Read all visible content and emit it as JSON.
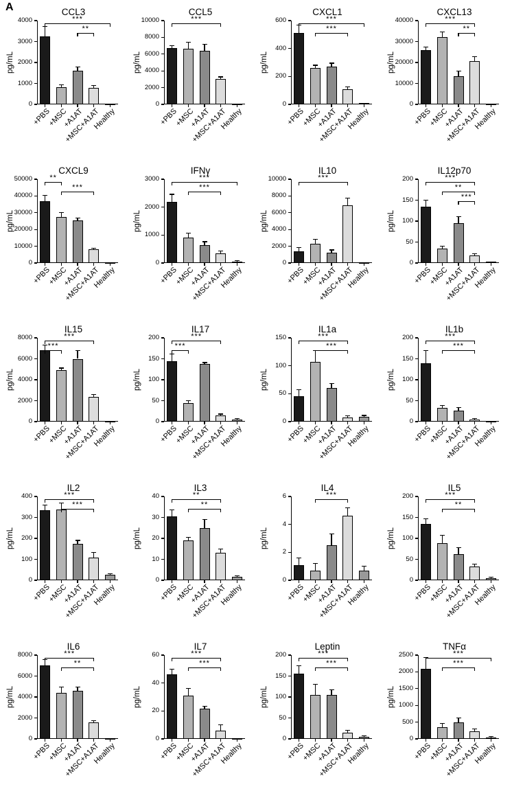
{
  "panel_label": "A",
  "style": {
    "bar_colors": [
      "#1a1a1a",
      "#b3b3b3",
      "#8a8a8a",
      "#dcdcdc",
      "#999999"
    ],
    "axis_color": "#000000"
  },
  "chart_data": {
    "type": "bar",
    "ylabel": "pg/mL",
    "categories": [
      "+PBS",
      "+MSC",
      "+A1AT",
      "+MSC+A1AT",
      "Healthy"
    ],
    "charts": [
      {
        "title": "CCL3",
        "ylim": [
          0,
          4000
        ],
        "yticks": [
          0,
          1000,
          2000,
          3000,
          4000
        ],
        "values": [
          3250,
          820,
          1620,
          790,
          25
        ],
        "errors": [
          480,
          110,
          160,
          110,
          15
        ],
        "significance": [
          {
            "from": 0,
            "to": 4,
            "label": "***",
            "level": 0
          },
          {
            "from": 2,
            "to": 3,
            "label": "**",
            "level": 1
          }
        ]
      },
      {
        "title": "CCL5",
        "ylim": [
          0,
          10000
        ],
        "yticks": [
          0,
          2000,
          4000,
          6000,
          8000,
          10000
        ],
        "values": [
          6700,
          6600,
          6400,
          3000,
          60
        ],
        "errors": [
          280,
          850,
          750,
          280,
          30
        ],
        "significance": [
          {
            "from": 0,
            "to": 3,
            "label": "***",
            "level": 0
          }
        ]
      },
      {
        "title": "CXCL1",
        "ylim": [
          0,
          600
        ],
        "yticks": [
          0,
          200,
          400,
          600
        ],
        "values": [
          510,
          260,
          270,
          110,
          8
        ],
        "errors": [
          60,
          20,
          25,
          15,
          4
        ],
        "significance": [
          {
            "from": 0,
            "to": 4,
            "label": "***",
            "level": 0
          },
          {
            "from": 1,
            "to": 3,
            "label": "***",
            "level": 1
          }
        ]
      },
      {
        "title": "CXCL13",
        "ylim": [
          0,
          40000
        ],
        "yticks": [
          0,
          10000,
          20000,
          30000,
          40000
        ],
        "values": [
          26000,
          32000,
          13500,
          20500,
          400
        ],
        "errors": [
          1500,
          2500,
          2500,
          2200,
          200
        ],
        "significance": [
          {
            "from": 0,
            "to": 3,
            "label": "***",
            "level": 0
          },
          {
            "from": 2,
            "to": 3,
            "label": "**",
            "level": 1
          }
        ]
      },
      {
        "title": "CXCL9",
        "ylim": [
          0,
          50000
        ],
        "yticks": [
          0,
          10000,
          20000,
          30000,
          40000,
          50000
        ],
        "values": [
          37000,
          27500,
          25500,
          8000,
          300
        ],
        "errors": [
          3200,
          2500,
          1500,
          900,
          150
        ],
        "significance": [
          {
            "from": 0,
            "to": 1,
            "label": "**",
            "level": 0
          },
          {
            "from": 1,
            "to": 3,
            "label": "***",
            "level": 1
          }
        ]
      },
      {
        "title": "IFNγ",
        "ylim": [
          0,
          3000
        ],
        "yticks": [
          0,
          1000,
          2000,
          3000
        ],
        "values": [
          2200,
          900,
          650,
          350,
          60
        ],
        "errors": [
          260,
          160,
          110,
          90,
          30
        ],
        "significance": [
          {
            "from": 0,
            "to": 4,
            "label": "***",
            "level": 0
          },
          {
            "from": 1,
            "to": 3,
            "label": "***",
            "level": 1
          }
        ]
      },
      {
        "title": "IL10",
        "ylim": [
          0,
          10000
        ],
        "yticks": [
          0,
          2000,
          4000,
          6000,
          8000,
          10000
        ],
        "values": [
          1400,
          2300,
          1200,
          6900,
          80
        ],
        "errors": [
          450,
          550,
          350,
          850,
          40
        ],
        "significance": [
          {
            "from": 0,
            "to": 3,
            "label": "***",
            "level": 0
          }
        ]
      },
      {
        "title": "IL12p70",
        "ylim": [
          0,
          200
        ],
        "yticks": [
          0,
          50,
          100,
          150,
          200
        ],
        "values": [
          135,
          35,
          95,
          18,
          3
        ],
        "errors": [
          15,
          5,
          15,
          4,
          1
        ],
        "significance": [
          {
            "from": 0,
            "to": 3,
            "label": "***",
            "level": 0
          },
          {
            "from": 1,
            "to": 3,
            "label": "**",
            "level": 1
          },
          {
            "from": 2,
            "to": 3,
            "label": "***",
            "level": 2
          }
        ]
      },
      {
        "title": "IL15",
        "ylim": [
          0,
          8000
        ],
        "yticks": [
          0,
          2000,
          4000,
          6000,
          8000
        ],
        "values": [
          6800,
          4900,
          6000,
          2350,
          60
        ],
        "errors": [
          500,
          220,
          800,
          260,
          30
        ],
        "significance": [
          {
            "from": 0,
            "to": 3,
            "label": "***",
            "level": 0
          },
          {
            "from": 0,
            "to": 1,
            "label": "***",
            "level": 1
          }
        ]
      },
      {
        "title": "IL17",
        "ylim": [
          0,
          200
        ],
        "yticks": [
          0,
          50,
          100,
          150,
          200
        ],
        "values": [
          145,
          45,
          137,
          15,
          5
        ],
        "errors": [
          16,
          5,
          4,
          3,
          2
        ],
        "significance": [
          {
            "from": 0,
            "to": 3,
            "label": "***",
            "level": 0
          },
          {
            "from": 0,
            "to": 1,
            "label": "***",
            "level": 1
          }
        ]
      },
      {
        "title": "IL1a",
        "ylim": [
          0,
          150
        ],
        "yticks": [
          0,
          50,
          100,
          150
        ],
        "values": [
          45,
          107,
          60,
          7,
          8
        ],
        "errors": [
          12,
          20,
          8,
          3,
          3
        ],
        "significance": [
          {
            "from": 0,
            "to": 3,
            "label": "***",
            "level": 0
          },
          {
            "from": 1,
            "to": 3,
            "label": "***",
            "level": 1
          }
        ]
      },
      {
        "title": "IL1b",
        "ylim": [
          0,
          200
        ],
        "yticks": [
          0,
          50,
          100,
          150,
          200
        ],
        "values": [
          140,
          33,
          27,
          5,
          2
        ],
        "errors": [
          30,
          5,
          6,
          2,
          1
        ],
        "significance": [
          {
            "from": 0,
            "to": 3,
            "label": "***",
            "level": 0
          },
          {
            "from": 1,
            "to": 3,
            "label": "***",
            "level": 1
          }
        ]
      },
      {
        "title": "IL2",
        "ylim": [
          0,
          400
        ],
        "yticks": [
          0,
          100,
          200,
          300,
          400
        ],
        "values": [
          335,
          338,
          175,
          107,
          25
        ],
        "errors": [
          25,
          30,
          15,
          25,
          6
        ],
        "significance": [
          {
            "from": 0,
            "to": 3,
            "label": "***",
            "level": 0
          },
          {
            "from": 1,
            "to": 3,
            "label": "***",
            "level": 1
          }
        ]
      },
      {
        "title": "IL3",
        "ylim": [
          0,
          40
        ],
        "yticks": [
          0,
          10,
          20,
          30,
          40
        ],
        "values": [
          30.5,
          19,
          25,
          13,
          1.5
        ],
        "errors": [
          3,
          1.5,
          4,
          2,
          0.5
        ],
        "significance": [
          {
            "from": 0,
            "to": 3,
            "label": "**",
            "level": 0
          },
          {
            "from": 1,
            "to": 3,
            "label": "**",
            "level": 1
          }
        ]
      },
      {
        "title": "IL4",
        "ylim": [
          0,
          6
        ],
        "yticks": [
          0,
          2,
          4,
          6
        ],
        "values": [
          1.1,
          0.7,
          2.5,
          4.6,
          0.7
        ],
        "errors": [
          0.5,
          0.5,
          0.8,
          0.6,
          0.3
        ],
        "significance": [
          {
            "from": 1,
            "to": 3,
            "label": "***",
            "level": 0
          }
        ]
      },
      {
        "title": "IL5",
        "ylim": [
          0,
          200
        ],
        "yticks": [
          0,
          50,
          100,
          150,
          200
        ],
        "values": [
          135,
          88,
          63,
          33,
          5
        ],
        "errors": [
          12,
          20,
          15,
          5,
          2
        ],
        "significance": [
          {
            "from": 0,
            "to": 3,
            "label": "***",
            "level": 0
          },
          {
            "from": 1,
            "to": 3,
            "label": "**",
            "level": 1
          }
        ]
      },
      {
        "title": "IL6",
        "ylim": [
          0,
          8000
        ],
        "yticks": [
          0,
          2000,
          4000,
          6000,
          8000
        ],
        "values": [
          7000,
          4400,
          4600,
          1600,
          60
        ],
        "errors": [
          600,
          550,
          350,
          150,
          30
        ],
        "significance": [
          {
            "from": 0,
            "to": 3,
            "label": "***",
            "level": 0
          },
          {
            "from": 1,
            "to": 3,
            "label": "**",
            "level": 1
          }
        ]
      },
      {
        "title": "IL7",
        "ylim": [
          0,
          60
        ],
        "yticks": [
          0,
          20,
          40,
          60
        ],
        "values": [
          46,
          31,
          21.5,
          6,
          0.5
        ],
        "errors": [
          4,
          5,
          2,
          4,
          0.3
        ],
        "significance": [
          {
            "from": 0,
            "to": 3,
            "label": "***",
            "level": 0
          },
          {
            "from": 1,
            "to": 3,
            "label": "***",
            "level": 1
          }
        ]
      },
      {
        "title": "Leptin",
        "ylim": [
          0,
          200
        ],
        "yticks": [
          0,
          50,
          100,
          150,
          200
        ],
        "values": [
          155,
          105,
          105,
          15,
          5
        ],
        "errors": [
          20,
          25,
          12,
          5,
          2
        ],
        "significance": [
          {
            "from": 0,
            "to": 3,
            "label": "***",
            "level": 0
          },
          {
            "from": 1,
            "to": 3,
            "label": "***",
            "level": 1
          }
        ]
      },
      {
        "title": "TNFα",
        "ylim": [
          0,
          2500
        ],
        "yticks": [
          0,
          500,
          1000,
          1500,
          2000,
          2500
        ],
        "values": [
          2100,
          350,
          500,
          220,
          40
        ],
        "errors": [
          320,
          110,
          130,
          70,
          25
        ],
        "significance": [
          {
            "from": 0,
            "to": 4,
            "label": "***",
            "level": 0
          },
          {
            "from": 1,
            "to": 3,
            "label": "***",
            "level": 1
          }
        ]
      }
    ]
  }
}
